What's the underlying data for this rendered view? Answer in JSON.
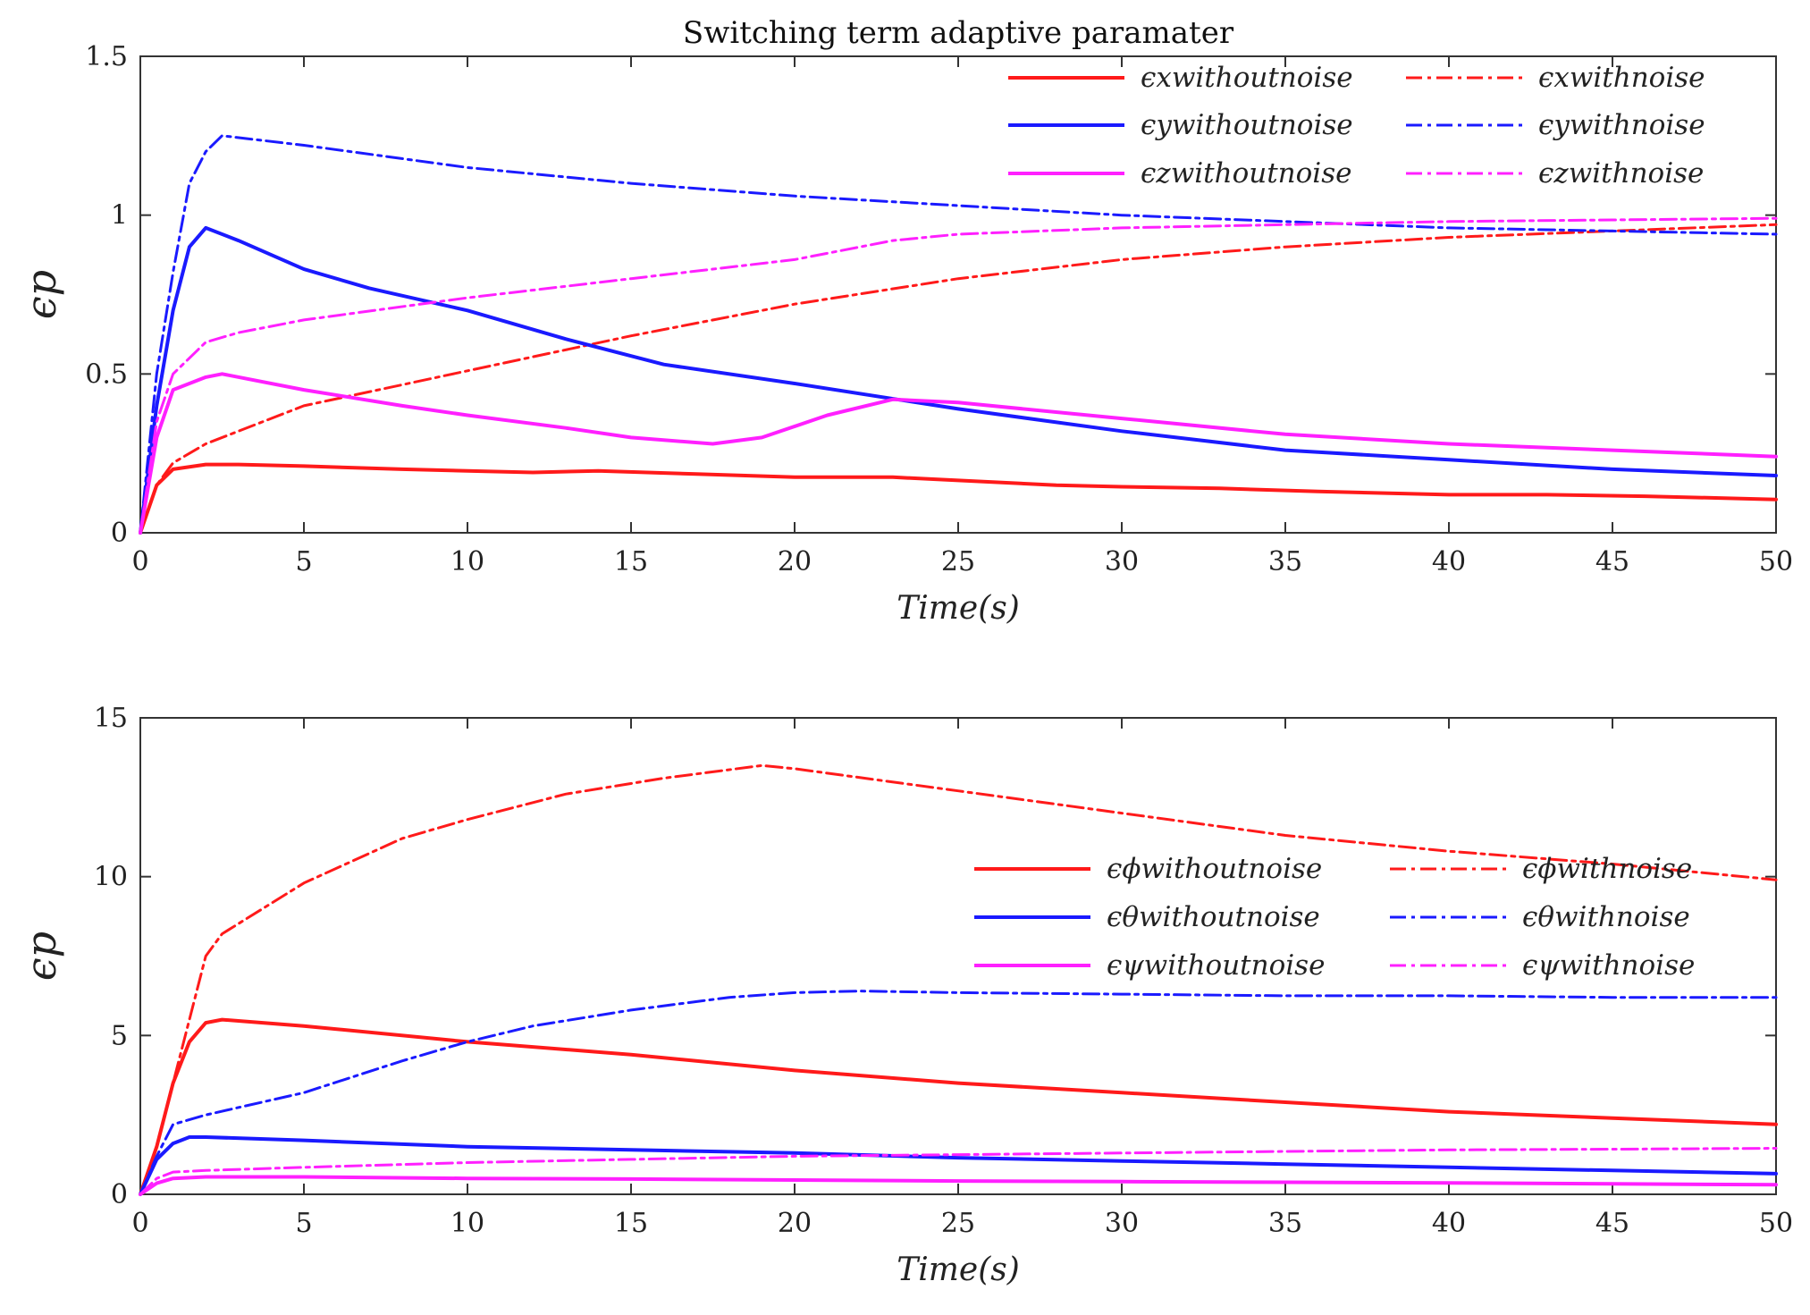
{
  "chart_data": [
    {
      "type": "line",
      "title": "Switching term adaptive paramater",
      "xlabel": "Time(s)",
      "ylabel": "ϵp",
      "xlim": [
        0,
        50
      ],
      "ylim": [
        0,
        1.5
      ],
      "xticks": [
        "0",
        "5",
        "10",
        "15",
        "20",
        "25",
        "30",
        "35",
        "40",
        "45",
        "50"
      ],
      "yticks": [
        "0",
        "0.5",
        "1",
        "1.5"
      ],
      "legend_position": "top-right",
      "series": [
        {
          "name": "ϵxwithoutnoise",
          "color": "#ff1a1a",
          "style": "solid",
          "x": [
            0,
            0.5,
            1,
            2,
            3,
            5,
            8,
            10,
            12,
            14,
            17,
            20,
            23,
            25,
            28,
            30,
            33,
            36,
            40,
            43,
            46,
            50
          ],
          "y": [
            0,
            0.15,
            0.2,
            0.215,
            0.215,
            0.21,
            0.2,
            0.195,
            0.19,
            0.195,
            0.185,
            0.175,
            0.175,
            0.165,
            0.15,
            0.145,
            0.14,
            0.13,
            0.12,
            0.12,
            0.115,
            0.105
          ]
        },
        {
          "name": "ϵxwithnoise",
          "color": "#ff1a1a",
          "style": "dashdot",
          "x": [
            0,
            0.5,
            1,
            2,
            5,
            10,
            15,
            20,
            25,
            30,
            35,
            40,
            45,
            50
          ],
          "y": [
            0,
            0.15,
            0.22,
            0.28,
            0.4,
            0.51,
            0.62,
            0.72,
            0.8,
            0.86,
            0.9,
            0.93,
            0.95,
            0.97
          ]
        },
        {
          "name": "ϵywithoutnoise",
          "color": "#1a1aff",
          "style": "solid",
          "x": [
            0,
            0.5,
            1,
            1.5,
            2,
            3,
            5,
            7,
            10,
            13,
            16,
            20,
            25,
            30,
            35,
            40,
            45,
            50
          ],
          "y": [
            0,
            0.4,
            0.7,
            0.9,
            0.96,
            0.92,
            0.83,
            0.77,
            0.7,
            0.61,
            0.53,
            0.47,
            0.39,
            0.32,
            0.26,
            0.23,
            0.2,
            0.18
          ]
        },
        {
          "name": "ϵywithnoise",
          "color": "#1a1aff",
          "style": "dashdot",
          "x": [
            0,
            0.5,
            1,
            1.5,
            2,
            2.5,
            5,
            10,
            15,
            20,
            25,
            30,
            35,
            40,
            45,
            50
          ],
          "y": [
            0,
            0.5,
            0.82,
            1.1,
            1.2,
            1.25,
            1.22,
            1.15,
            1.1,
            1.06,
            1.03,
            1.0,
            0.98,
            0.96,
            0.95,
            0.94
          ]
        },
        {
          "name": "ϵzwithoutnoise",
          "color": "#ff20ff",
          "style": "solid",
          "x": [
            0,
            0.5,
            1,
            2,
            2.5,
            5,
            8,
            10,
            13,
            15,
            17.5,
            19,
            21,
            23,
            25,
            30,
            35,
            40,
            45,
            50
          ],
          "y": [
            0,
            0.3,
            0.45,
            0.49,
            0.5,
            0.45,
            0.4,
            0.37,
            0.33,
            0.3,
            0.28,
            0.3,
            0.37,
            0.42,
            0.41,
            0.36,
            0.31,
            0.28,
            0.26,
            0.24
          ]
        },
        {
          "name": "ϵzwithnoise",
          "color": "#ff20ff",
          "style": "dashdot",
          "x": [
            0,
            0.5,
            1,
            2,
            3,
            5,
            10,
            15,
            20,
            23,
            25,
            30,
            35,
            40,
            45,
            50
          ],
          "y": [
            0,
            0.35,
            0.5,
            0.6,
            0.63,
            0.67,
            0.74,
            0.8,
            0.86,
            0.92,
            0.94,
            0.96,
            0.97,
            0.98,
            0.985,
            0.99
          ]
        }
      ]
    },
    {
      "type": "line",
      "title": "",
      "xlabel": "Time(s)",
      "ylabel": "ϵp",
      "xlim": [
        0,
        50
      ],
      "ylim": [
        0,
        15
      ],
      "xticks": [
        "0",
        "5",
        "10",
        "15",
        "20",
        "25",
        "30",
        "35",
        "40",
        "45",
        "50"
      ],
      "yticks": [
        "0",
        "5",
        "10",
        "15"
      ],
      "legend_position": "center-right",
      "series": [
        {
          "name": "ϵϕwithoutnoise",
          "color": "#ff1a1a",
          "style": "solid",
          "x": [
            0,
            0.5,
            1,
            1.5,
            2,
            2.5,
            5,
            10,
            15,
            20,
            25,
            30,
            35,
            40,
            45,
            50
          ],
          "y": [
            0,
            1.5,
            3.5,
            4.8,
            5.4,
            5.5,
            5.3,
            4.8,
            4.4,
            3.9,
            3.5,
            3.2,
            2.9,
            2.6,
            2.4,
            2.2
          ]
        },
        {
          "name": "ϵϕwithnoise",
          "color": "#ff1a1a",
          "style": "dashdot",
          "x": [
            0,
            0.5,
            1,
            1.5,
            2,
            2.5,
            5,
            8,
            10,
            13,
            16,
            19,
            20,
            25,
            30,
            35,
            40,
            45,
            50
          ],
          "y": [
            0,
            1.5,
            3.5,
            5.5,
            7.5,
            8.2,
            9.8,
            11.2,
            11.8,
            12.6,
            13.1,
            13.5,
            13.4,
            12.7,
            12.0,
            11.3,
            10.8,
            10.4,
            9.9
          ]
        },
        {
          "name": "ϵθwithoutnoise",
          "color": "#1a1aff",
          "style": "solid",
          "x": [
            0,
            0.5,
            1,
            1.5,
            2,
            5,
            10,
            15,
            20,
            25,
            30,
            35,
            40,
            45,
            50
          ],
          "y": [
            0,
            1.1,
            1.6,
            1.8,
            1.8,
            1.7,
            1.5,
            1.4,
            1.3,
            1.15,
            1.05,
            0.95,
            0.85,
            0.75,
            0.65
          ]
        },
        {
          "name": "ϵθwithnoise",
          "color": "#1a1aff",
          "style": "dashdot",
          "x": [
            0,
            0.5,
            1,
            2,
            5,
            8,
            10,
            12,
            15,
            18,
            20,
            22,
            25,
            30,
            35,
            40,
            45,
            50
          ],
          "y": [
            0,
            1.2,
            2.2,
            2.5,
            3.2,
            4.2,
            4.8,
            5.3,
            5.8,
            6.2,
            6.35,
            6.4,
            6.35,
            6.3,
            6.25,
            6.25,
            6.2,
            6.2
          ]
        },
        {
          "name": "ϵψwithoutnoise",
          "color": "#ff20ff",
          "style": "solid",
          "x": [
            0,
            0.5,
            1,
            2,
            5,
            10,
            15,
            20,
            25,
            30,
            35,
            40,
            45,
            50
          ],
          "y": [
            0,
            0.35,
            0.5,
            0.55,
            0.55,
            0.5,
            0.48,
            0.45,
            0.42,
            0.4,
            0.38,
            0.36,
            0.33,
            0.3
          ]
        },
        {
          "name": "ϵψwithnoise",
          "color": "#ff20ff",
          "style": "dashdot",
          "x": [
            0,
            0.5,
            1,
            2,
            5,
            10,
            15,
            20,
            25,
            30,
            35,
            40,
            45,
            50
          ],
          "y": [
            0,
            0.5,
            0.7,
            0.75,
            0.85,
            1.0,
            1.1,
            1.2,
            1.25,
            1.3,
            1.35,
            1.4,
            1.42,
            1.45
          ]
        }
      ]
    }
  ]
}
